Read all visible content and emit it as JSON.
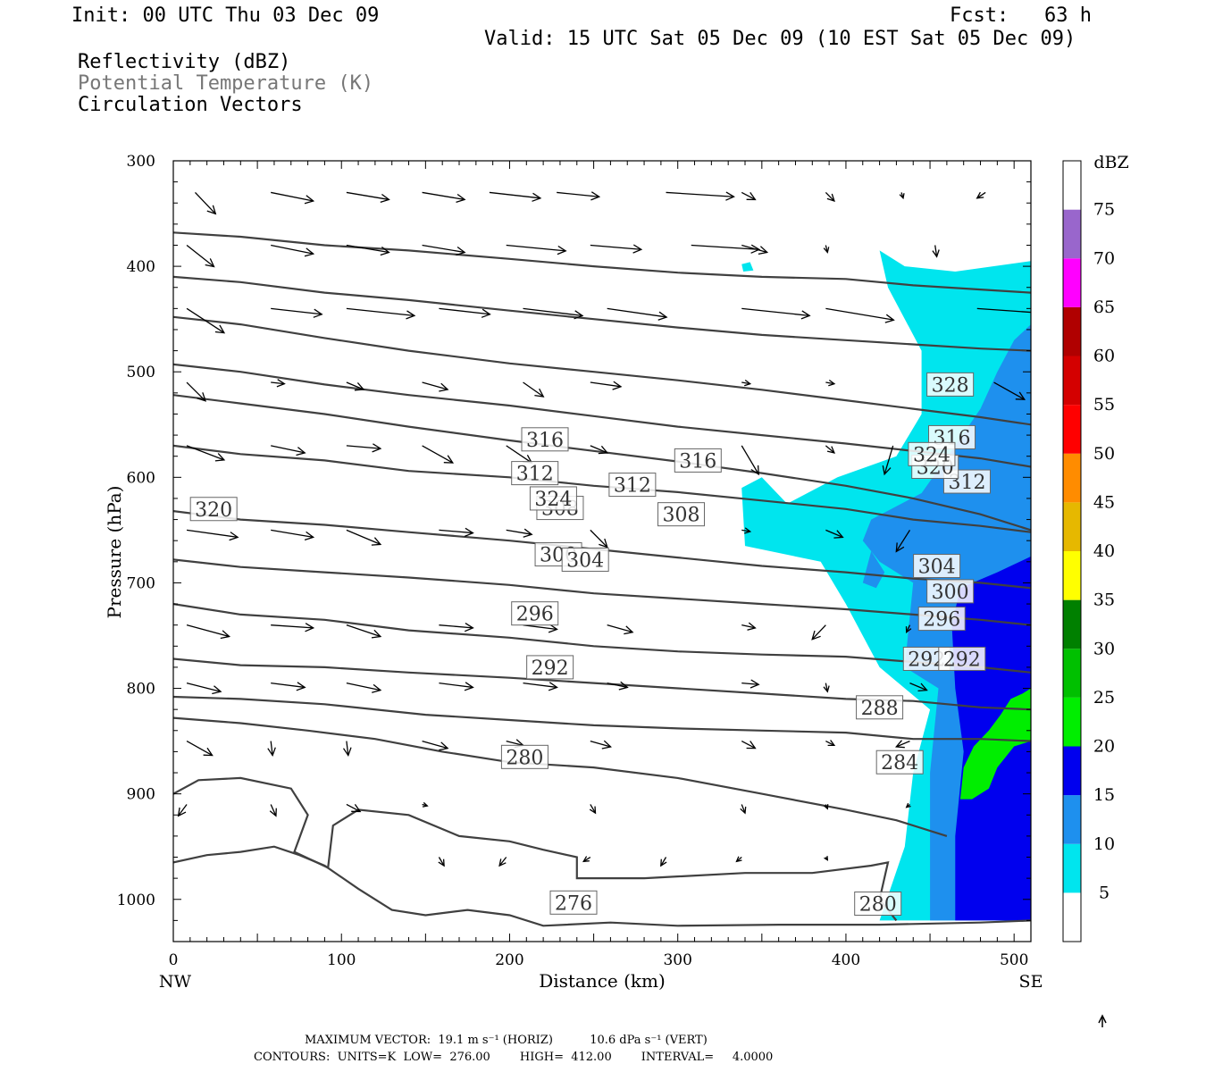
{
  "header": {
    "init": "Init: 00 UTC Thu 03 Dec 09",
    "fcst": "Fcst:   63 h",
    "valid": "Valid: 15 UTC Sat 05 Dec 09 (10 EST Sat 05 Dec 09)",
    "field1": "Reflectivity (dBZ)",
    "field2": "Potential Temperature (K)",
    "field3": "Circulation Vectors"
  },
  "footer": {
    "max_vector": "MAXIMUM VECTOR:  19.1 m s⁻¹ (HORIZ)          10.6 dPa s⁻¹ (VERT)",
    "contours": "CONTOURS:  UNITS=K  LOW=  276.00        HIGH=  412.00        INTERVAL=     4.0000"
  },
  "colors": {
    "theta_line": "#404040",
    "vector": "#000000"
  },
  "chart_data": {
    "type": "cross-section",
    "xlabel": "Distance (km)",
    "ylabel": "Pressure (hPa)",
    "xlim": [
      0,
      510
    ],
    "ylim": [
      1040,
      300
    ],
    "x_ticks": [
      0,
      100,
      200,
      300,
      400,
      500
    ],
    "y_ticks": [
      300,
      400,
      500,
      600,
      700,
      800,
      900,
      1000
    ],
    "x_end_labels": {
      "left": "NW",
      "right": "SE"
    },
    "colorbar": {
      "title": "dBZ",
      "levels": [
        5,
        10,
        15,
        20,
        25,
        30,
        35,
        40,
        45,
        50,
        55,
        60,
        65,
        70,
        75
      ],
      "colors": [
        "#ffffff",
        "#00e5ee",
        "#1e90ee",
        "#0000ee",
        "#00ee00",
        "#00c000",
        "#008000",
        "#ffff00",
        "#e6b800",
        "#ff8c00",
        "#ff0000",
        "#d40000",
        "#b00000",
        "#ff00ff",
        "#9966cc",
        "#ffffff"
      ]
    },
    "reflectivity": [
      {
        "dbz": 5,
        "polygon": [
          [
            420,
            1020
          ],
          [
            435,
            950
          ],
          [
            440,
            880
          ],
          [
            450,
            820
          ],
          [
            420,
            780
          ],
          [
            400,
            720
          ],
          [
            385,
            680
          ],
          [
            340,
            665
          ],
          [
            338,
            610
          ],
          [
            350,
            600
          ],
          [
            365,
            625
          ],
          [
            395,
            600
          ],
          [
            430,
            580
          ],
          [
            445,
            540
          ],
          [
            445,
            480
          ],
          [
            425,
            420
          ],
          [
            420,
            385
          ],
          [
            435,
            400
          ],
          [
            465,
            405
          ],
          [
            510,
            395
          ],
          [
            510,
            1020
          ]
        ]
      },
      {
        "dbz": 5,
        "polygon": [
          [
            338,
            398
          ],
          [
            343,
            396
          ],
          [
            345,
            404
          ],
          [
            339,
            405
          ]
        ]
      },
      {
        "dbz": 10,
        "polygon": [
          [
            450,
            1020
          ],
          [
            450,
            880
          ],
          [
            455,
            800
          ],
          [
            435,
            780
          ],
          [
            440,
            700
          ],
          [
            420,
            680
          ],
          [
            410,
            660
          ],
          [
            415,
            640
          ],
          [
            445,
            615
          ],
          [
            465,
            570
          ],
          [
            480,
            535
          ],
          [
            490,
            500
          ],
          [
            500,
            470
          ],
          [
            510,
            455
          ],
          [
            510,
            1020
          ]
        ]
      },
      {
        "dbz": 10,
        "polygon": [
          [
            410,
            700
          ],
          [
            415,
            670
          ],
          [
            423,
            690
          ],
          [
            418,
            705
          ]
        ]
      },
      {
        "dbz": 15,
        "polygon": [
          [
            465,
            1020
          ],
          [
            465,
            940
          ],
          [
            470,
            860
          ],
          [
            465,
            800
          ],
          [
            463,
            740
          ],
          [
            468,
            705
          ],
          [
            490,
            690
          ],
          [
            510,
            675
          ],
          [
            510,
            1020
          ]
        ]
      },
      {
        "dbz": 20,
        "polygon": [
          [
            468,
            905
          ],
          [
            470,
            875
          ],
          [
            476,
            855
          ],
          [
            485,
            840
          ],
          [
            492,
            825
          ],
          [
            498,
            810
          ],
          [
            505,
            805
          ],
          [
            510,
            800
          ],
          [
            510,
            850
          ],
          [
            500,
            855
          ],
          [
            490,
            875
          ],
          [
            485,
            895
          ],
          [
            475,
            905
          ]
        ]
      }
    ],
    "theta_contours": [
      {
        "value": 276,
        "points": [
          [
            0,
            965
          ],
          [
            20,
            958
          ],
          [
            40,
            955
          ],
          [
            60,
            950
          ],
          [
            75,
            958
          ],
          [
            90,
            968
          ],
          [
            110,
            990
          ],
          [
            130,
            1010
          ],
          [
            150,
            1015
          ],
          [
            175,
            1010
          ],
          [
            200,
            1015
          ],
          [
            220,
            1025
          ],
          [
            260,
            1022
          ],
          [
            300,
            1025
          ],
          [
            360,
            1024
          ],
          [
            420,
            1024
          ],
          [
            480,
            1022
          ],
          [
            510,
            1020
          ]
        ],
        "labels": [
          [
            238,
            1003
          ]
        ]
      },
      {
        "value": 280,
        "points": [
          [
            0,
            900
          ],
          [
            15,
            887
          ],
          [
            40,
            885
          ],
          [
            70,
            895
          ],
          [
            80,
            920
          ],
          [
            72,
            955
          ],
          [
            92,
            970
          ],
          [
            95,
            930
          ],
          [
            110,
            915
          ],
          [
            140,
            920
          ],
          [
            170,
            940
          ],
          [
            200,
            945
          ],
          [
            220,
            953
          ],
          [
            240,
            960
          ],
          [
            240,
            980
          ],
          [
            280,
            980
          ],
          [
            340,
            975
          ],
          [
            380,
            975
          ],
          [
            415,
            968
          ],
          [
            425,
            965
          ],
          [
            420,
            1000
          ],
          [
            430,
            1020
          ]
        ],
        "labels": [
          [
            209,
            865
          ],
          [
            419,
            1004
          ]
        ]
      },
      {
        "value": 284,
        "points": [
          [
            0,
            828
          ],
          [
            40,
            833
          ],
          [
            80,
            840
          ],
          [
            120,
            848
          ],
          [
            160,
            860
          ],
          [
            200,
            870
          ],
          [
            250,
            875
          ],
          [
            300,
            885
          ],
          [
            350,
            900
          ],
          [
            400,
            915
          ],
          [
            430,
            925
          ],
          [
            460,
            940
          ]
        ],
        "labels": [
          [
            432,
            870
          ]
        ]
      },
      {
        "value": 288,
        "points": [
          [
            0,
            808
          ],
          [
            40,
            810
          ],
          [
            90,
            815
          ],
          [
            150,
            825
          ],
          [
            200,
            830
          ],
          [
            250,
            835
          ],
          [
            300,
            838
          ],
          [
            350,
            840
          ],
          [
            400,
            842
          ],
          [
            440,
            848
          ],
          [
            480,
            848
          ],
          [
            510,
            850
          ]
        ],
        "labels": [
          [
            420,
            818
          ]
        ]
      },
      {
        "value": 292,
        "points": [
          [
            0,
            772
          ],
          [
            40,
            778
          ],
          [
            90,
            780
          ],
          [
            140,
            785
          ],
          [
            200,
            790
          ],
          [
            250,
            795
          ],
          [
            300,
            800
          ],
          [
            350,
            805
          ],
          [
            400,
            810
          ],
          [
            440,
            812
          ],
          [
            480,
            818
          ],
          [
            510,
            820
          ]
        ],
        "labels": [
          [
            224,
            780
          ],
          [
            448,
            772
          ],
          [
            469,
            772
          ]
        ]
      },
      {
        "value": 296,
        "points": [
          [
            0,
            720
          ],
          [
            40,
            730
          ],
          [
            90,
            735
          ],
          [
            140,
            745
          ],
          [
            200,
            752
          ],
          [
            250,
            760
          ],
          [
            300,
            765
          ],
          [
            350,
            768
          ],
          [
            400,
            770
          ],
          [
            440,
            775
          ],
          [
            480,
            780
          ],
          [
            510,
            785
          ]
        ],
        "labels": [
          [
            215,
            729
          ],
          [
            457,
            734
          ]
        ]
      },
      {
        "value": 300,
        "points": [
          [
            0,
            678
          ],
          [
            40,
            685
          ],
          [
            90,
            690
          ],
          [
            140,
            695
          ],
          [
            200,
            702
          ],
          [
            250,
            710
          ],
          [
            300,
            715
          ],
          [
            350,
            720
          ],
          [
            400,
            725
          ],
          [
            440,
            730
          ],
          [
            480,
            735
          ],
          [
            510,
            740
          ]
        ],
        "labels": [
          [
            229,
            673
          ],
          [
            462,
            708
          ]
        ]
      },
      {
        "value": 304,
        "points": [
          [
            0,
            632
          ],
          [
            40,
            640
          ],
          [
            90,
            645
          ],
          [
            140,
            652
          ],
          [
            200,
            660
          ],
          [
            250,
            668
          ],
          [
            300,
            676
          ],
          [
            350,
            684
          ],
          [
            400,
            690
          ],
          [
            440,
            696
          ],
          [
            480,
            700
          ],
          [
            510,
            705
          ]
        ],
        "labels": [
          [
            245,
            678
          ],
          [
            454,
            684
          ]
        ]
      },
      {
        "value": 308,
        "points": [
          [
            0,
            570
          ],
          [
            40,
            578
          ],
          [
            90,
            584
          ],
          [
            140,
            594
          ],
          [
            200,
            600
          ],
          [
            250,
            608
          ],
          [
            300,
            614
          ],
          [
            350,
            622
          ],
          [
            400,
            630
          ],
          [
            440,
            640
          ],
          [
            480,
            646
          ],
          [
            510,
            652
          ]
        ],
        "labels": [
          [
            230,
            629
          ],
          [
            302,
            635
          ]
        ]
      },
      {
        "value": 312,
        "points": [
          [
            0,
            522
          ],
          [
            40,
            530
          ],
          [
            90,
            540
          ],
          [
            140,
            552
          ],
          [
            200,
            565
          ],
          [
            250,
            575
          ],
          [
            300,
            585
          ],
          [
            350,
            596
          ],
          [
            400,
            608
          ],
          [
            440,
            620
          ],
          [
            480,
            635
          ],
          [
            510,
            650
          ]
        ],
        "labels": [
          [
            215,
            596
          ],
          [
            273,
            607
          ],
          [
            472,
            604
          ]
        ]
      },
      {
        "value": 316,
        "points": [
          [
            0,
            493
          ],
          [
            40,
            500
          ],
          [
            90,
            512
          ],
          [
            140,
            522
          ],
          [
            200,
            532
          ],
          [
            250,
            542
          ],
          [
            300,
            552
          ],
          [
            350,
            560
          ],
          [
            400,
            568
          ],
          [
            440,
            575
          ],
          [
            480,
            582
          ],
          [
            510,
            590
          ]
        ],
        "labels": [
          [
            221,
            564
          ],
          [
            312,
            584
          ],
          [
            463,
            562
          ]
        ]
      },
      {
        "value": 320,
        "points": [
          [
            0,
            448
          ],
          [
            40,
            455
          ],
          [
            90,
            468
          ],
          [
            140,
            480
          ],
          [
            200,
            492
          ],
          [
            250,
            500
          ],
          [
            300,
            508
          ],
          [
            350,
            517
          ],
          [
            400,
            527
          ],
          [
            440,
            535
          ],
          [
            480,
            543
          ],
          [
            510,
            550
          ]
        ],
        "labels": [
          [
            24,
            630
          ],
          [
            453,
            590
          ]
        ]
      },
      {
        "value": 324,
        "points": [
          [
            0,
            410
          ],
          [
            40,
            415
          ],
          [
            90,
            425
          ],
          [
            140,
            432
          ],
          [
            200,
            442
          ],
          [
            250,
            450
          ],
          [
            300,
            458
          ],
          [
            350,
            465
          ],
          [
            400,
            470
          ],
          [
            440,
            474
          ],
          [
            480,
            478
          ],
          [
            510,
            480
          ]
        ],
        "labels": [
          [
            226,
            620
          ],
          [
            451,
            578
          ]
        ]
      },
      {
        "value": 328,
        "points": [
          [
            0,
            368
          ],
          [
            40,
            372
          ],
          [
            90,
            380
          ],
          [
            140,
            385
          ],
          [
            200,
            393
          ],
          [
            250,
            400
          ],
          [
            300,
            406
          ],
          [
            350,
            410
          ],
          [
            400,
            412
          ],
          [
            440,
            418
          ],
          [
            480,
            422
          ],
          [
            510,
            425
          ]
        ],
        "labels": [
          [
            462,
            512
          ]
        ]
      }
    ]
  }
}
